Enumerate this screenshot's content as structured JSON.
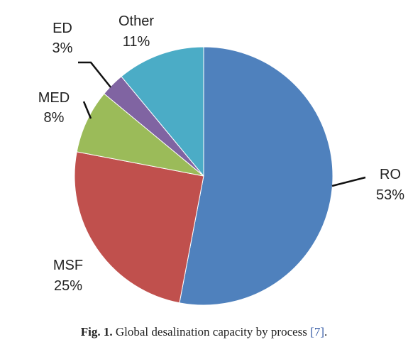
{
  "chart_data": {
    "type": "pie",
    "slices": [
      {
        "label": "RO",
        "value": 53,
        "display": "53%",
        "color": "#4f81bd"
      },
      {
        "label": "MSF",
        "value": 25,
        "display": "25%",
        "color": "#c0504d"
      },
      {
        "label": "MED",
        "value": 8,
        "display": "8%",
        "color": "#9bbb59"
      },
      {
        "label": "ED",
        "value": 3,
        "display": "3%",
        "color": "#8064a2"
      },
      {
        "label": "Other",
        "value": 11,
        "display": "11%",
        "color": "#4bacc6"
      }
    ],
    "start": "12 o'clock",
    "direction": "clockwise"
  },
  "caption": {
    "fig": "Fig. 1.",
    "text": " Global desalination capacity by process ",
    "ref": "[7]",
    "end": "."
  }
}
